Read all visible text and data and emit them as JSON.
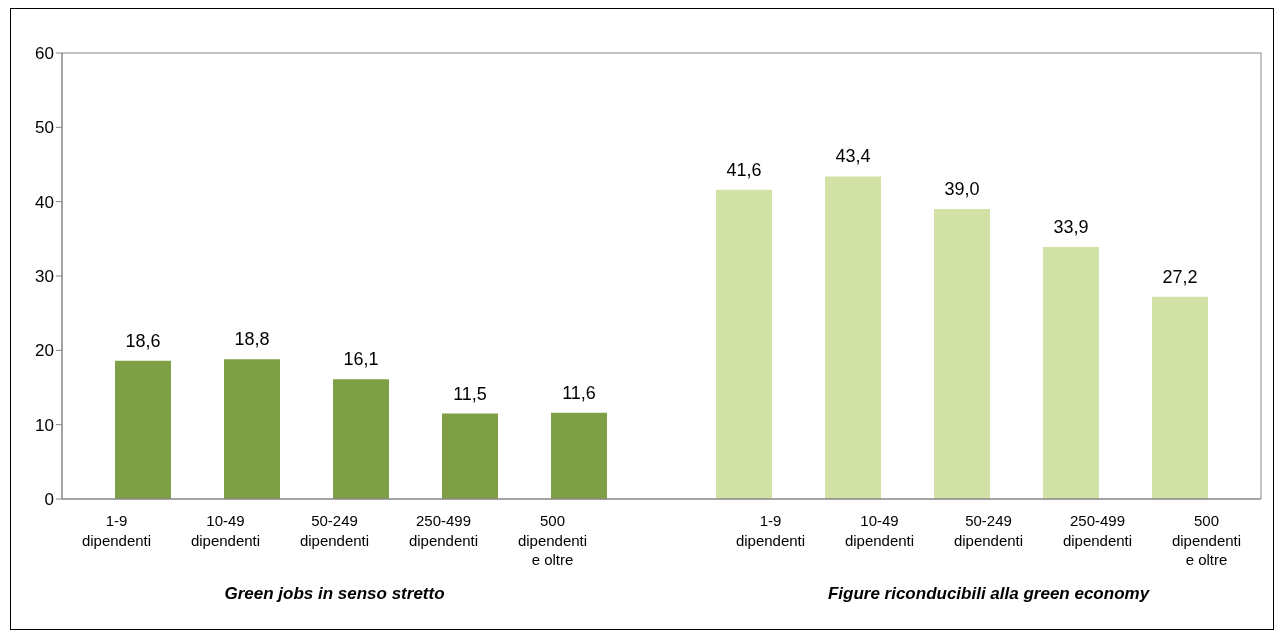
{
  "chart_data": {
    "type": "bar",
    "categories": [
      "1-9 dipendenti",
      "10-49 dipendenti",
      "50-249 dipendenti",
      "250-499 dipendenti",
      "500 dipendenti e oltre",
      null,
      "1-9 dipendenti",
      "10-49 dipendenti",
      "50-249 dipendenti",
      "250-499 dipendenti",
      "500 dipendenti e oltre"
    ],
    "series": [
      {
        "color": "#7f9f47",
        "values": [
          18.6,
          18.8,
          16.1,
          11.5,
          11.6,
          null,
          null,
          null,
          null,
          null,
          null
        ],
        "value_labels": [
          "18,6",
          "18,8",
          "16,1",
          "11,5",
          "11,6",
          null,
          null,
          null,
          null,
          null,
          null
        ]
      },
      {
        "color": "#d2e2a6",
        "values": [
          null,
          null,
          null,
          null,
          null,
          null,
          41.6,
          43.4,
          39.0,
          33.9,
          27.2
        ],
        "value_labels": [
          null,
          null,
          null,
          null,
          null,
          null,
          "41,6",
          "43,4",
          "39,0",
          "33,9",
          "27,2"
        ]
      }
    ],
    "annotations": [
      "Green jobs in senso stretto",
      "Figure riconducibili alla green economy"
    ],
    "ylim": [
      0,
      60
    ],
    "yticks": [
      0,
      10,
      20,
      30,
      40,
      50,
      60
    ],
    "grid": false,
    "legend": false
  }
}
